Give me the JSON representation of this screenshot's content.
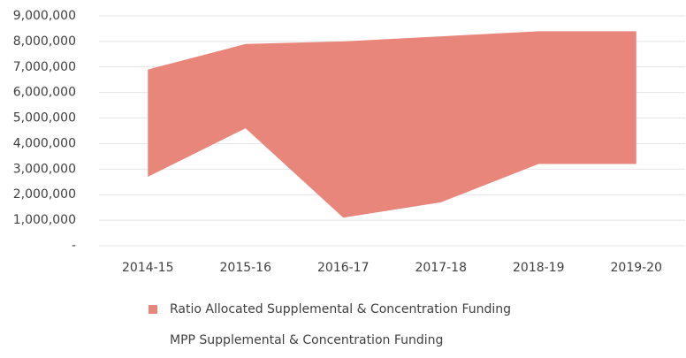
{
  "chart_data": {
    "type": "stacked_area",
    "categories": [
      "2014-15",
      "2015-16",
      "2016-17",
      "2017-18",
      "2018-19",
      "2019-20"
    ],
    "series": [
      {
        "name": "Ratio Allocated Supplemental & Concentration Funding",
        "color": "#e8867c",
        "values": [
          4200000,
          3300000,
          6900000,
          6500000,
          5200000,
          5200000
        ]
      },
      {
        "name": "MPP Supplemental & Concentration Funding",
        "color": "none",
        "values": [
          2700000,
          4600000,
          1100000,
          1700000,
          3200000,
          3200000
        ]
      }
    ],
    "ylim": [
      0,
      9000000
    ],
    "yticks": [
      {
        "value": 0,
        "label": "-"
      },
      {
        "value": 1000000,
        "label": "1,000,000"
      },
      {
        "value": 2000000,
        "label": "2,000,000"
      },
      {
        "value": 3000000,
        "label": "3,000,000"
      },
      {
        "value": 4000000,
        "label": "4,000,000"
      },
      {
        "value": 5000000,
        "label": "5,000,000"
      },
      {
        "value": 6000000,
        "label": "6,000,000"
      },
      {
        "value": 7000000,
        "label": "7,000,000"
      },
      {
        "value": 8000000,
        "label": "8,000,000"
      },
      {
        "value": 9000000,
        "label": "9,000,000"
      }
    ],
    "grid": true,
    "legend": "bottom"
  }
}
